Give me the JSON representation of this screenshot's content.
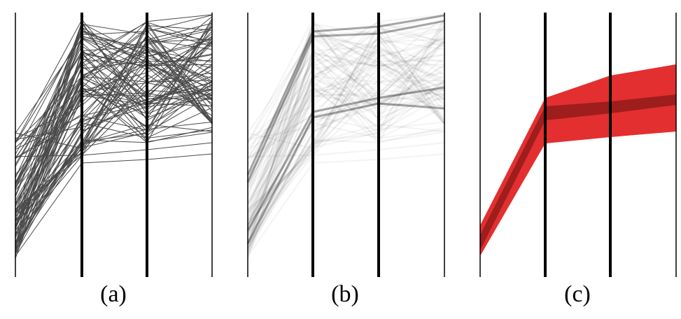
{
  "figure": {
    "panels": [
      {
        "id": "a",
        "caption": "(a)",
        "style": "polylines",
        "line_color": "#4a4a4a",
        "axis_color": "#000000"
      },
      {
        "id": "b",
        "caption": "(b)",
        "style": "density",
        "line_color": "#000000",
        "axis_color": "#000000"
      },
      {
        "id": "c",
        "caption": "(c)",
        "style": "band",
        "band_color": "#e01818",
        "core_color": "#4a0808",
        "axis_color": "#000000"
      }
    ],
    "axes_per_panel": 4
  }
}
